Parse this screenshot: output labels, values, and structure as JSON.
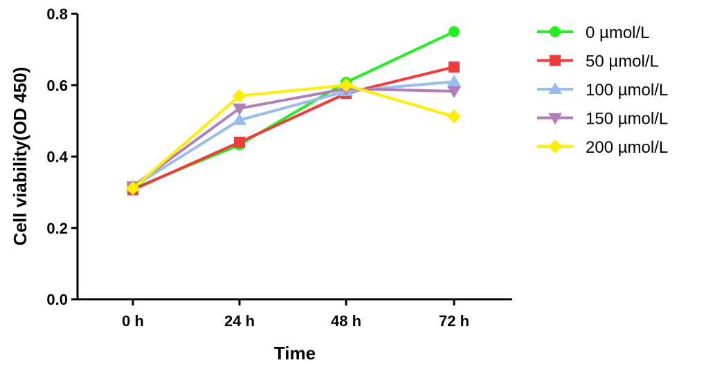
{
  "chart_data": {
    "type": "line",
    "title": "",
    "xlabel": "Time",
    "ylabel": "Cell viability(OD 450)",
    "categories": [
      "0 h",
      "24 h",
      "48 h",
      "72 h"
    ],
    "ylim": [
      0,
      0.8
    ],
    "yticks": [
      "0.0",
      "0.2",
      "0.4",
      "0.6",
      "0.8"
    ],
    "grid": false,
    "legend_position": "right",
    "series": [
      {
        "name": "0 µmol/L",
        "values": [
          0.31,
          0.433,
          0.608,
          0.75
        ],
        "color": "#22ee22",
        "marker": "circle"
      },
      {
        "name": "50 µmol/L",
        "values": [
          0.307,
          0.44,
          0.577,
          0.651
        ],
        "color": "#ee3b3b",
        "marker": "square"
      },
      {
        "name": "100 µmol/L",
        "values": [
          0.315,
          0.502,
          0.583,
          0.61
        ],
        "color": "#99bbee",
        "marker": "triangle-up"
      },
      {
        "name": "150 µmol/L",
        "values": [
          0.317,
          0.535,
          0.59,
          0.583
        ],
        "color": "#b07fb8",
        "marker": "triangle-down"
      },
      {
        "name": "200 µmol/L",
        "values": [
          0.311,
          0.57,
          0.6,
          0.512
        ],
        "color": "#ffee00",
        "marker": "diamond"
      }
    ]
  }
}
